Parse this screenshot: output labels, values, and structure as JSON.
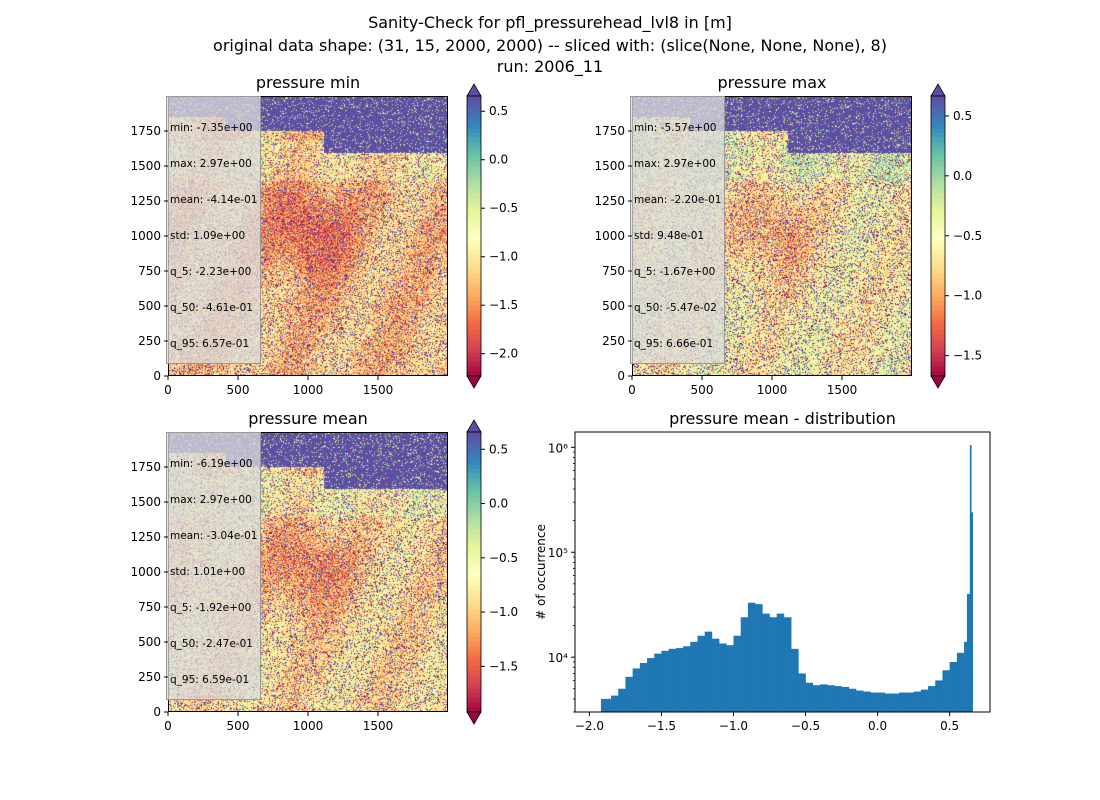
{
  "suptitle": {
    "line1": "Sanity-Check for pfl_pressurehead_lvl8 in [m]",
    "line2": "original data shape: (31, 15, 2000, 2000) -- sliced with: (slice(None, None, None), 8)",
    "line3": "run: 2006_11"
  },
  "colors": {
    "colormap": "Spectral",
    "histogram_bar": "#1f77b4",
    "stats_box_bg": "#d9d9d9"
  },
  "chart_data": [
    {
      "type": "heatmap",
      "title": "pressure min",
      "x_ticks": [
        "0",
        "500",
        "1000",
        "1500"
      ],
      "y_ticks": [
        "0",
        "250",
        "500",
        "750",
        "1000",
        "1250",
        "1500",
        "1750"
      ],
      "xlim": [
        0,
        2000
      ],
      "ylim": [
        0,
        2000
      ],
      "colorbar": {
        "vmin": -2.23,
        "vmax": 0.657,
        "extend": "both",
        "ticks": [
          "0.5",
          "0.0",
          "−0.5",
          "−1.0",
          "−1.5",
          "−2.0"
        ],
        "tick_values": [
          0.5,
          0.0,
          -0.5,
          -1.0,
          -1.5,
          -2.0
        ]
      },
      "stats": [
        "min: -7.35e+00",
        "max: 2.97e+00",
        "mean: -4.14e-01",
        "std: 1.09e+00",
        "q_5: -2.23e+00",
        "q_50: -4.61e-01",
        "q_95: 6.57e-01"
      ]
    },
    {
      "type": "heatmap",
      "title": "pressure max",
      "x_ticks": [
        "0",
        "500",
        "1000",
        "1500"
      ],
      "y_ticks": [
        "0",
        "250",
        "500",
        "750",
        "1000",
        "1250",
        "1500",
        "1750"
      ],
      "xlim": [
        0,
        2000
      ],
      "ylim": [
        0,
        2000
      ],
      "colorbar": {
        "vmin": -1.67,
        "vmax": 0.666,
        "extend": "both",
        "ticks": [
          "0.5",
          "0.0",
          "−0.5",
          "−1.0",
          "−1.5"
        ],
        "tick_values": [
          0.5,
          0.0,
          -0.5,
          -1.0,
          -1.5
        ]
      },
      "stats": [
        "min: -5.57e+00",
        "max: 2.97e+00",
        "mean: -2.20e-01",
        "std: 9.48e-01",
        "q_5: -1.67e+00",
        "q_50: -5.47e-02",
        "q_95: 6.66e-01"
      ]
    },
    {
      "type": "heatmap",
      "title": "pressure mean",
      "x_ticks": [
        "0",
        "500",
        "1000",
        "1500"
      ],
      "y_ticks": [
        "0",
        "250",
        "500",
        "750",
        "1000",
        "1250",
        "1500",
        "1750"
      ],
      "xlim": [
        0,
        2000
      ],
      "ylim": [
        0,
        2000
      ],
      "colorbar": {
        "vmin": -1.92,
        "vmax": 0.659,
        "extend": "both",
        "ticks": [
          "0.5",
          "0.0",
          "−0.5",
          "−1.0",
          "−1.5"
        ],
        "tick_values": [
          0.5,
          0.0,
          -0.5,
          -1.0,
          -1.5
        ]
      },
      "stats": [
        "min: -6.19e+00",
        "max: 2.97e+00",
        "mean: -3.04e-01",
        "std: 1.01e+00",
        "q_5: -1.92e+00",
        "q_50: -2.47e-01",
        "q_95: 6.59e-01"
      ]
    },
    {
      "type": "bar",
      "title": "pressure mean - distribution",
      "ylabel": "# of occurrence",
      "xlabel": "",
      "y_scale": "log",
      "xlim": [
        -2.1,
        0.78
      ],
      "ylim": [
        3000,
        1400000
      ],
      "x_ticks": [
        "−2.0",
        "−1.5",
        "−1.0",
        "−0.5",
        "0.0",
        "0.5"
      ],
      "x_tick_values": [
        -2.0,
        -1.5,
        -1.0,
        -0.5,
        0.0,
        0.5
      ],
      "y_ticks": [
        "10⁴",
        "10⁵",
        "10⁶"
      ],
      "y_tick_values": [
        10000,
        100000,
        1000000
      ],
      "bins": {
        "x": [
          -1.92,
          -1.85,
          -1.8,
          -1.75,
          -1.7,
          -1.65,
          -1.6,
          -1.55,
          -1.5,
          -1.45,
          -1.4,
          -1.35,
          -1.3,
          -1.25,
          -1.2,
          -1.15,
          -1.1,
          -1.05,
          -1.0,
          -0.95,
          -0.9,
          -0.85,
          -0.8,
          -0.75,
          -0.7,
          -0.65,
          -0.6,
          -0.55,
          -0.5,
          -0.45,
          -0.4,
          -0.35,
          -0.3,
          -0.25,
          -0.2,
          -0.15,
          -0.1,
          -0.05,
          0.0,
          0.05,
          0.1,
          0.15,
          0.2,
          0.25,
          0.3,
          0.35,
          0.4,
          0.45,
          0.5,
          0.55,
          0.6,
          0.62,
          0.64,
          0.65
        ],
        "y": [
          4000,
          4300,
          5000,
          6500,
          7800,
          8800,
          9800,
          10800,
          11500,
          12000,
          12200,
          12700,
          14000,
          16000,
          17500,
          15000,
          13500,
          13000,
          16000,
          24000,
          33000,
          32000,
          26000,
          24000,
          26000,
          24000,
          12000,
          7000,
          5700,
          5400,
          5500,
          5400,
          5300,
          5200,
          5000,
          4800,
          4700,
          4600,
          4600,
          4500,
          4500,
          4600,
          4600,
          4700,
          4900,
          5300,
          6000,
          7500,
          9000,
          11000,
          14000,
          40000,
          1050000,
          240000
        ]
      }
    }
  ]
}
